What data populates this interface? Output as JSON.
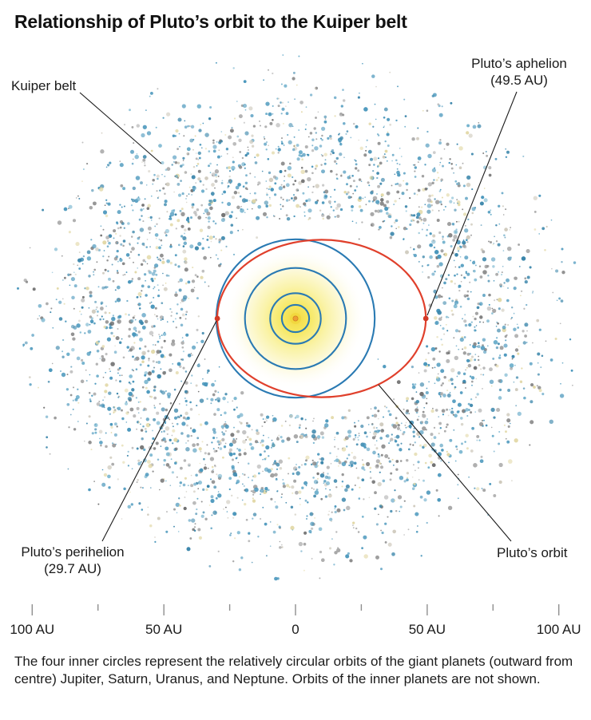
{
  "title": "Relationship of Pluto’s orbit to the Kuiper belt",
  "labels": {
    "kuiper_belt": "Kuiper belt",
    "aphelion_line1": "Pluto’s aphelion",
    "aphelion_line2": "(49.5 AU)",
    "perihelion_line1": "Pluto’s perihelion",
    "perihelion_line2": "(29.7 AU)",
    "pluto_orbit": "Pluto’s orbit"
  },
  "axis": {
    "tick_labels": [
      "100 AU",
      "50 AU",
      "0",
      "50 AU",
      "100 AU"
    ],
    "tick_label_au": [
      -100,
      -50,
      0,
      50,
      100
    ],
    "tick_marks_au": [
      -100,
      -75,
      -50,
      -25,
      0,
      25,
      50,
      75,
      100
    ]
  },
  "caption": "The four inner circles represent the relatively circular orbits of the giant planets (outward from centre) Jupiter, Saturn, Uranus, and Neptune. Orbits of the inner planets are not shown.",
  "colors": {
    "orbit_red": "#e0402c",
    "orbit_point_red": "#d23826",
    "planet_blue": "#2a7ab3",
    "belt_teal": "#4a97bc",
    "belt_gray": "#8c8c8c",
    "sun_core": "#ee9f35",
    "sun_ring": "#f2d83f",
    "leader_line": "#1a1a1a",
    "tick_gray": "#8f8f8f"
  },
  "diagram": {
    "planet_orbits_au": [
      5.2,
      9.6,
      19.2,
      30.1
    ],
    "pluto": {
      "perihelion_au": 29.7,
      "aphelion_au": 49.5
    }
  }
}
